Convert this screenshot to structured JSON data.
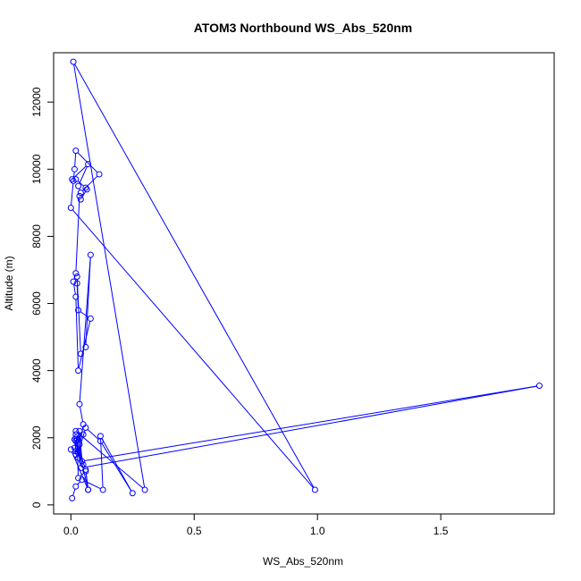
{
  "chart_data": {
    "type": "line",
    "title": "ATOM3 Northbound WS_Abs_520nm",
    "xlabel": "WS_Abs_520nm",
    "ylabel": "Altitude (m)",
    "xlim": [
      -0.07,
      1.96
    ],
    "ylim": [
      -270,
      13470
    ],
    "x_ticks": [
      0,
      0.5,
      1,
      1.5
    ],
    "x_tick_labels": [
      "0.0",
      "0.5",
      "1.0",
      "1.5"
    ],
    "y_ticks": [
      0,
      2000,
      4000,
      6000,
      8000,
      10000,
      12000
    ],
    "y_tick_labels": [
      "0",
      "2000",
      "4000",
      "6000",
      "8000",
      "10000",
      "12000"
    ],
    "grid": false,
    "series": [
      {
        "color": "#0000ff",
        "marker": "open-circle",
        "x": [
          0.005,
          0.02,
          0.045,
          0.13,
          0.12,
          0.25,
          0.12,
          0.06,
          0.03,
          0.02,
          0.035,
          0.05,
          0.015,
          0.02,
          0.02,
          0.07,
          0.06,
          0.03,
          0.025,
          0.04,
          1.9,
          0.045,
          0.035,
          0.03,
          0.05,
          0.035,
          0.08,
          0.06,
          0.04,
          0.025,
          0.025,
          0.03,
          0.08,
          0.03,
          0.02,
          0.01,
          0.02,
          0.035,
          0.04,
          0.065,
          0.06,
          0.02,
          0.005,
          0.07,
          0.03,
          0.04,
          0.115,
          0.02,
          0.015,
          0.01,
          0.0,
          0.99,
          0.01,
          0.3,
          0.02,
          0.05,
          0.015,
          0.02,
          0.02,
          0.06,
          0.07,
          0.0
        ],
        "y": [
          200,
          550,
          750,
          450,
          2050,
          350,
          1900,
          2300,
          1550,
          2100,
          1800,
          1200,
          1700,
          1500,
          2000,
          450,
          1000,
          800,
          1950,
          1100,
          3550,
          1300,
          2200,
          1400,
          2400,
          3000,
          7450,
          4700,
          4500,
          6800,
          6600,
          5800,
          5550,
          4000,
          6200,
          6650,
          6900,
          9200,
          9100,
          9400,
          9450,
          9700,
          9700,
          10150,
          9500,
          9300,
          9850,
          10550,
          10000,
          9650,
          8850,
          450,
          13200,
          450,
          2200,
          2100,
          1950,
          1600,
          1900,
          1050,
          450,
          1650
        ]
      }
    ]
  }
}
